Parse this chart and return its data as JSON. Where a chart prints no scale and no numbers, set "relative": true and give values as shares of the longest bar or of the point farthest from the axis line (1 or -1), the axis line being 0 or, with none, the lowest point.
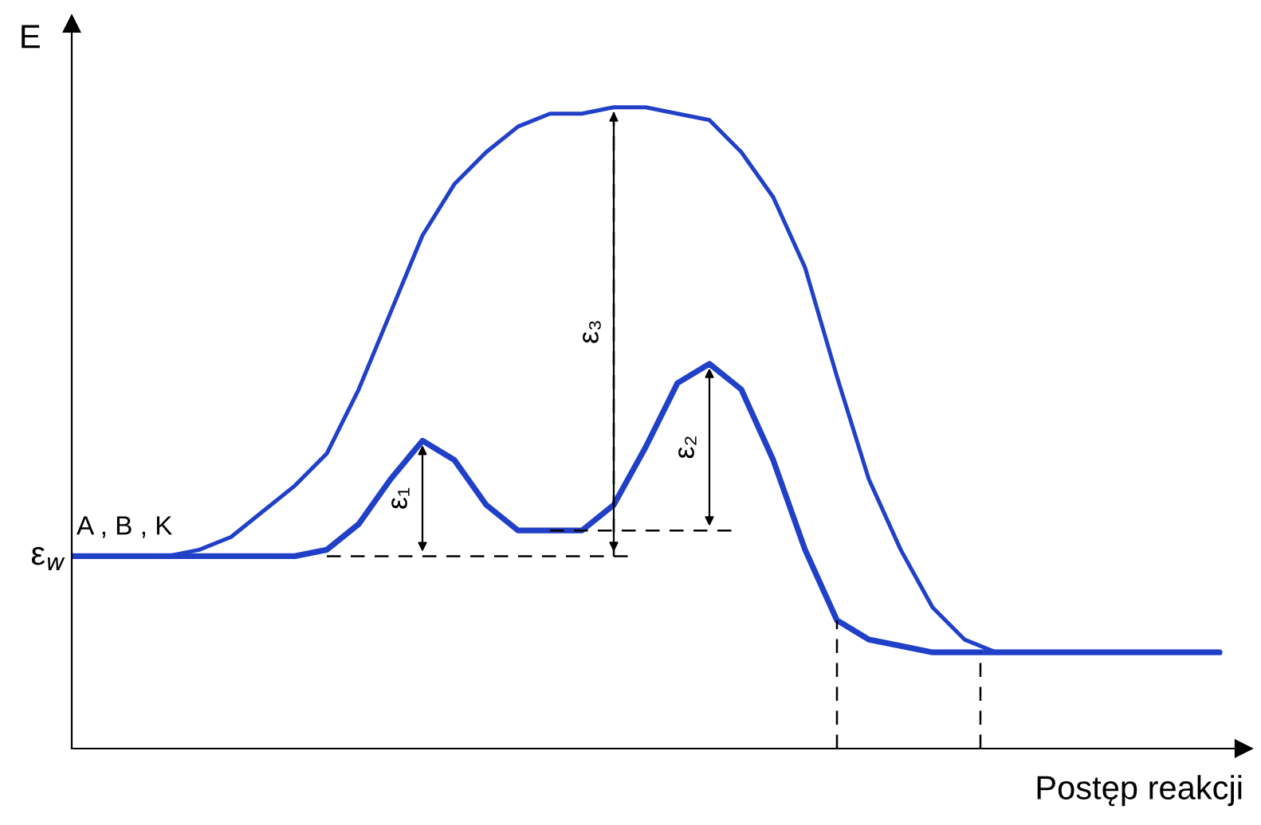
{
  "chart_data": {
    "type": "line",
    "relative": true,
    "xlabel": "Postęp reakcji",
    "ylabel": "E",
    "categories": [
      null,
      null,
      null,
      null,
      null,
      null,
      null,
      null,
      null,
      null,
      null,
      null,
      null,
      null,
      null,
      null,
      null,
      null,
      null,
      null,
      null,
      null,
      null,
      null,
      null,
      null,
      null,
      null,
      null,
      null,
      null,
      null,
      null,
      null,
      null,
      null,
      null
    ],
    "series": [
      {
        "color": "#2040c8",
        "values": [
          0.3,
          0.3,
          0.3,
          0.3,
          0.31,
          0.33,
          0.37,
          0.41,
          0.46,
          0.56,
          0.68,
          0.8,
          0.88,
          0.93,
          0.97,
          0.99,
          0.99,
          1.0,
          1.0,
          0.99,
          0.98,
          0.93,
          0.86,
          0.75,
          0.58,
          0.42,
          0.31,
          0.22,
          0.17,
          0.15,
          0.15,
          0.15,
          0.15,
          0.15,
          0.15,
          0.15,
          0.15
        ]
      },
      {
        "color": "#2040c8",
        "values": [
          0.3,
          0.3,
          0.3,
          0.3,
          0.3,
          0.3,
          0.3,
          0.3,
          0.31,
          0.35,
          0.42,
          0.48,
          0.45,
          0.38,
          0.34,
          0.34,
          0.34,
          0.38,
          0.47,
          0.57,
          0.6,
          0.56,
          0.45,
          0.31,
          0.2,
          0.17,
          0.16,
          0.15,
          0.15,
          0.15,
          0.15,
          0.15,
          0.15,
          0.15,
          0.15,
          0.15,
          0.15
        ]
      }
    ],
    "annotations": [
      "A , B , K",
      "ε$_{w}$",
      "ε₁",
      "ε₂",
      "ε₃"
    ],
    "legend": false,
    "marker": "none",
    "line_style": "solid"
  }
}
